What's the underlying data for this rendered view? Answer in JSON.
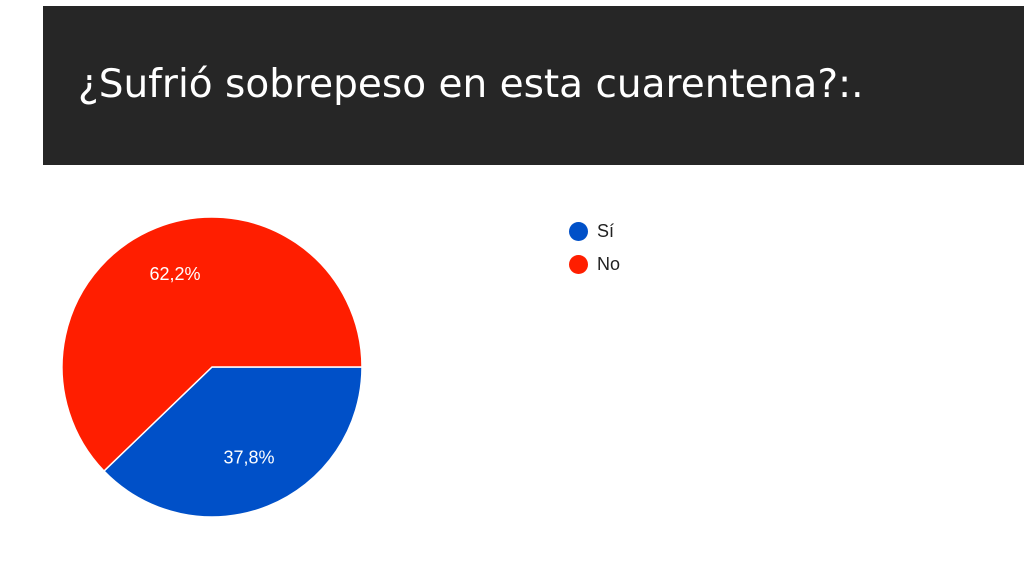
{
  "header": {
    "title": "¿Sufrió sobrepeso en esta cuarentena?:."
  },
  "chart_data": {
    "type": "pie",
    "title": "¿Sufrió sobrepeso en esta cuarentena?:.",
    "categories": [
      "Sí",
      "No"
    ],
    "values": [
      37.8,
      62.2
    ],
    "labels": [
      "37,8%",
      "62,2%"
    ],
    "colors": [
      "#0050C8",
      "#FF1E00"
    ],
    "legend_position": "top-right"
  }
}
